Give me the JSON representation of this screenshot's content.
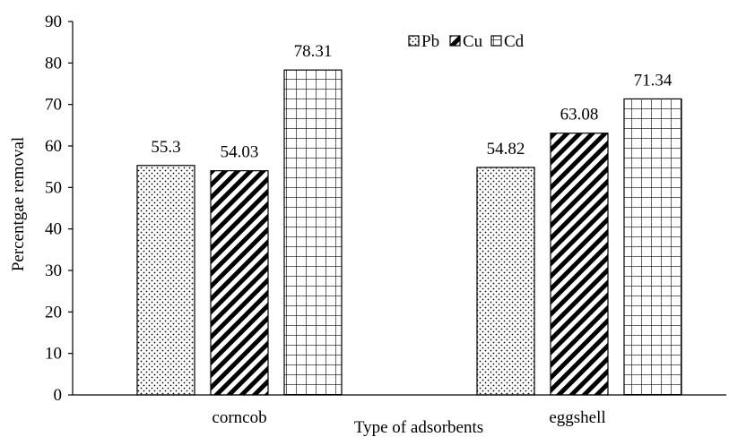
{
  "chart_data": {
    "type": "bar",
    "categories": [
      "corncob",
      "eggshell"
    ],
    "series": [
      {
        "name": "Pb",
        "values": [
          55.3,
          54.82
        ],
        "pattern": "dots"
      },
      {
        "name": "Cu",
        "values": [
          54.03,
          63.08
        ],
        "pattern": "diagonal"
      },
      {
        "name": "Cd",
        "values": [
          78.31,
          71.34
        ],
        "pattern": "grid"
      }
    ],
    "data_labels": [
      [
        "55.3",
        "54.82"
      ],
      [
        "54.03",
        "63.08"
      ],
      [
        "78.31",
        "71.34"
      ]
    ],
    "xlabel": "Type of adsorbents",
    "ylabel": "Percentgae removal",
    "ylim": [
      0,
      90
    ],
    "yticks": [
      0,
      10,
      20,
      30,
      40,
      50,
      60,
      70,
      80,
      90
    ],
    "grid": false,
    "legend_position": "top-center",
    "bar_fill": "#ffffff",
    "bar_stroke": "#000000"
  }
}
